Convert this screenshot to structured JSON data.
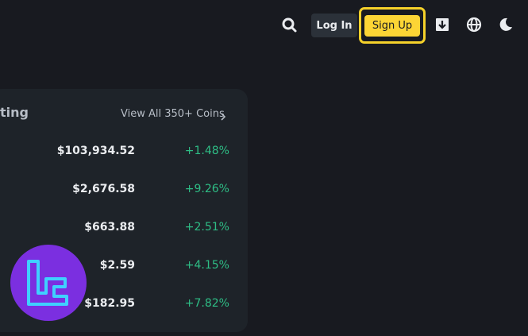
{
  "header": {
    "login": "Log In",
    "signup": "Sign Up"
  },
  "panel": {
    "title": "ting",
    "link": "View All 350+ Coins",
    "rows": [
      {
        "price": "$103,934.52",
        "change": "+1.48%"
      },
      {
        "price": "$2,676.58",
        "change": "+9.26%"
      },
      {
        "price": "$663.88",
        "change": "+2.51%"
      },
      {
        "price": "$2.59",
        "change": "+4.15%"
      },
      {
        "price": "$182.95",
        "change": "+7.82%"
      }
    ]
  }
}
